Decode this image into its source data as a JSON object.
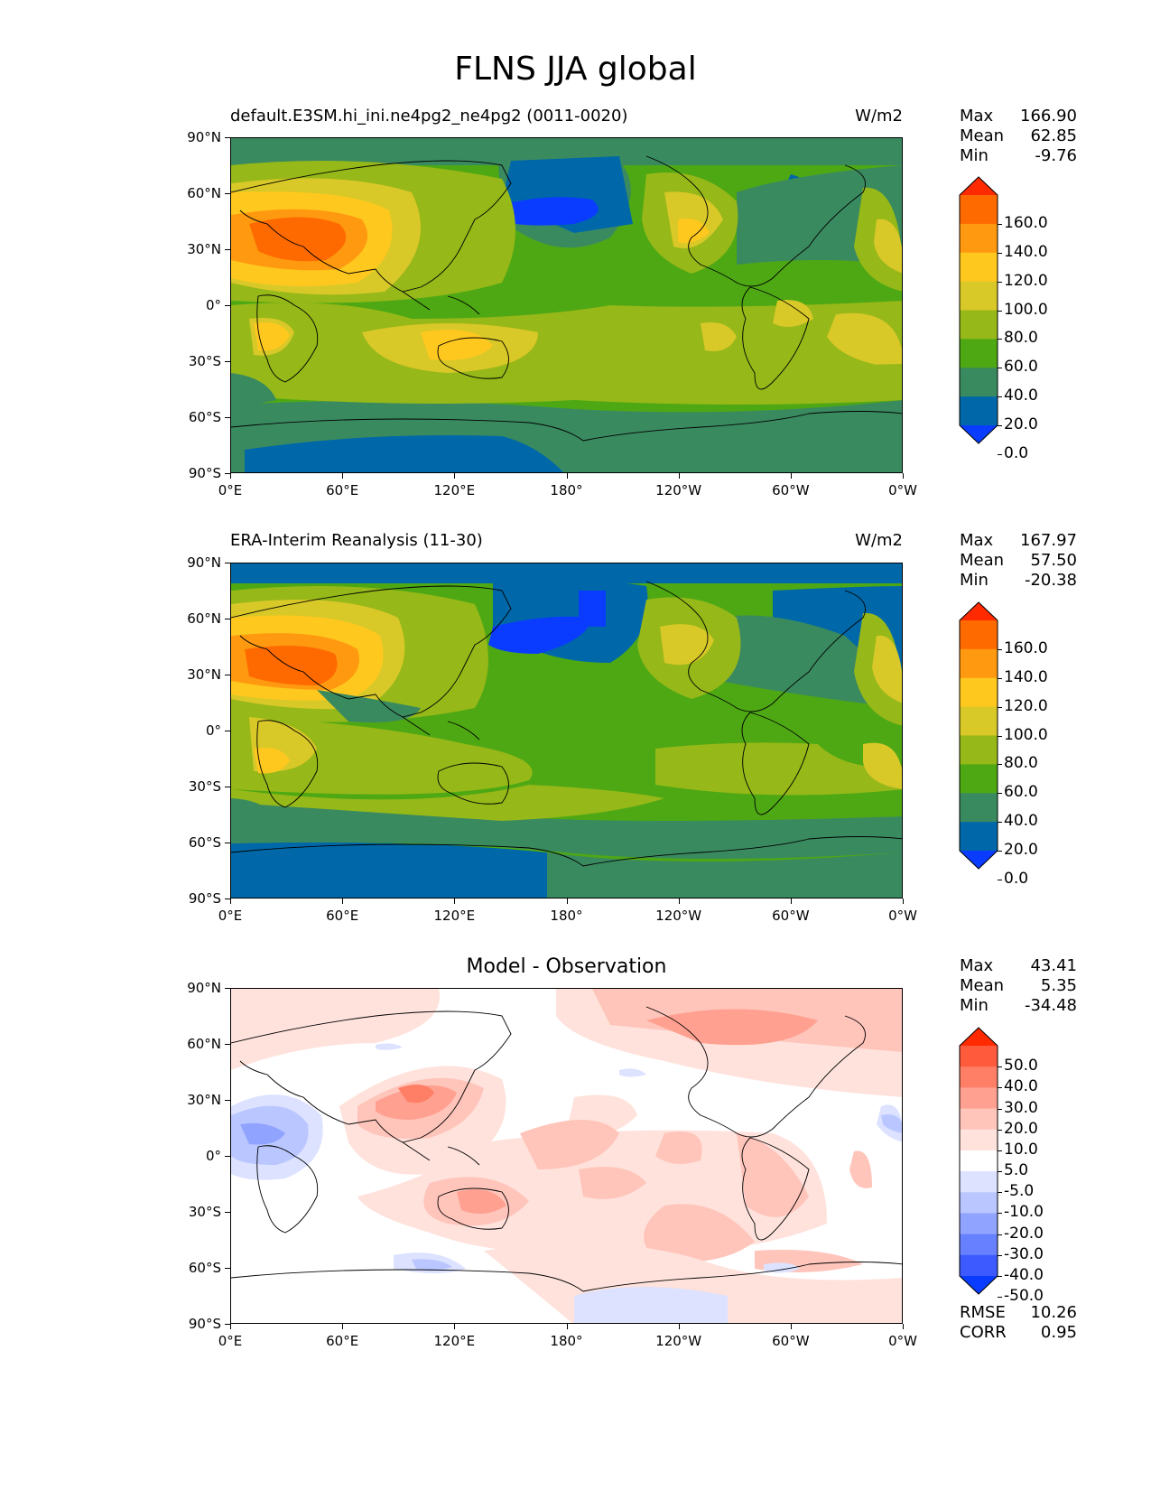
{
  "page_title": "FLNS JJA global",
  "panels": [
    {
      "subtitle_left": "default.E3SM.hi_ini.ne4pg2_ne4pg2 (0011-0020)",
      "subtitle_right": "W/m2",
      "stats": [
        [
          "Max",
          "166.90"
        ],
        [
          "Mean",
          "62.85"
        ],
        [
          "Min",
          "-9.76"
        ]
      ],
      "cbar_labels": [
        "160.0",
        "140.0",
        "120.0",
        "100.0",
        "80.0",
        "60.0",
        "40.0",
        "20.0",
        "0.0"
      ]
    },
    {
      "subtitle_left": "ERA-Interim Reanalysis (11-30)",
      "subtitle_right": "W/m2",
      "stats": [
        [
          "Max",
          "167.97"
        ],
        [
          "Mean",
          "57.50"
        ],
        [
          "Min",
          "-20.38"
        ]
      ],
      "cbar_labels": [
        "160.0",
        "140.0",
        "120.0",
        "100.0",
        "80.0",
        "60.0",
        "40.0",
        "20.0",
        "0.0"
      ]
    },
    {
      "subtitle_center": "Model - Observation",
      "stats": [
        [
          "Max",
          "43.41"
        ],
        [
          "Mean",
          "5.35"
        ],
        [
          "Min",
          "-34.48"
        ]
      ],
      "cbar_labels": [
        "50.0",
        "40.0",
        "30.0",
        "20.0",
        "10.0",
        "5.0",
        "-5.0",
        "-10.0",
        "-20.0",
        "-30.0",
        "-40.0",
        "-50.0"
      ],
      "extra_stats": [
        [
          "RMSE",
          "10.26"
        ],
        [
          "CORR",
          "0.95"
        ]
      ]
    }
  ],
  "y_ticks": [
    "90°N",
    "60°N",
    "30°N",
    "0°",
    "30°S",
    "60°S",
    "90°S"
  ],
  "x_ticks": [
    "0°E",
    "60°E",
    "120°E",
    "180°",
    "120°W",
    "60°W",
    "0°W"
  ],
  "colormaps": {
    "field": [
      "#ff2a00",
      "#ff6a00",
      "#ff9a10",
      "#ffc81e",
      "#d8c828",
      "#96b818",
      "#4ea814",
      "#3a8a60",
      "#0068a8",
      "#0a3cff"
    ],
    "diff": [
      "#ff2a00",
      "#ff5a3c",
      "#ff7e66",
      "#ffa090",
      "#ffc4ba",
      "#ffe2dc",
      "#ffffff",
      "#dce2ff",
      "#bac6ff",
      "#90a4ff",
      "#6680ff",
      "#3c5aff",
      "#0a3cff"
    ]
  }
}
